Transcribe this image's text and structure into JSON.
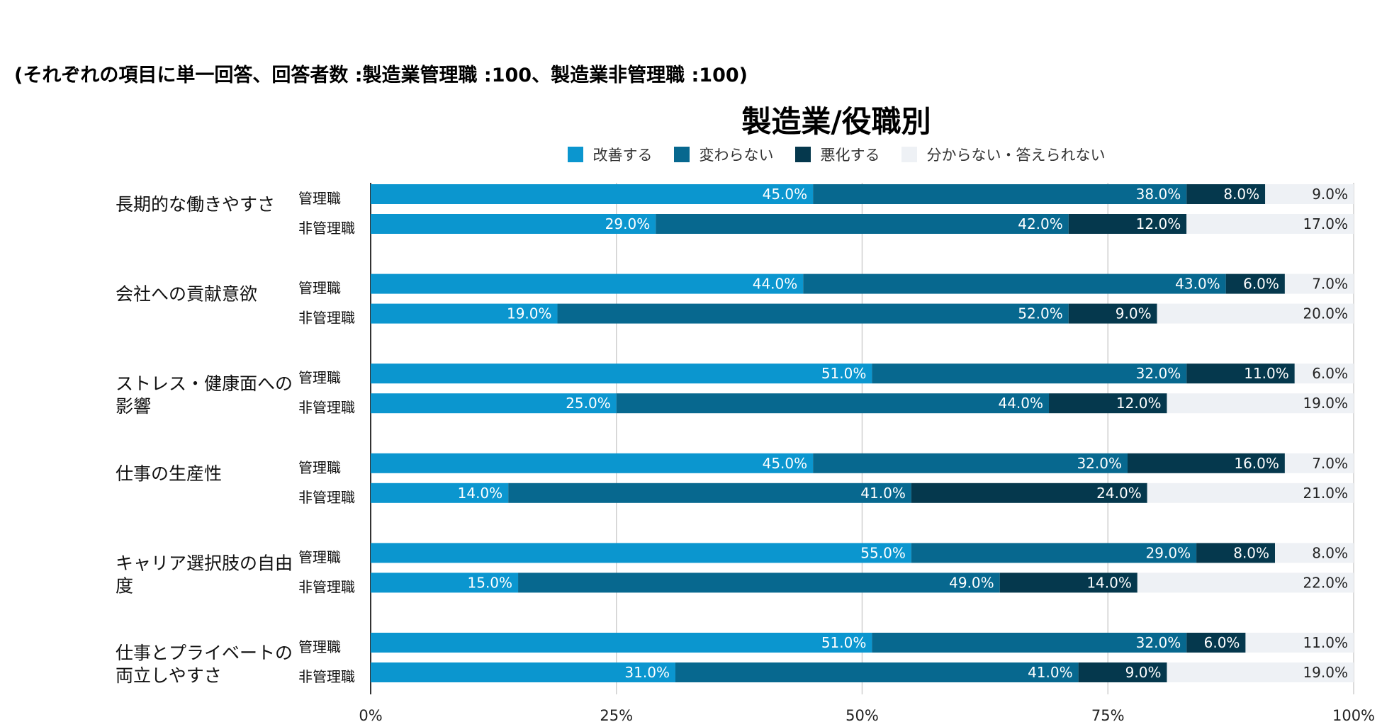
{
  "note": "(それぞれの項目に単一回答、回答者数 :製造業管理職 :100、製造業非管理職 :100)",
  "chart_data": {
    "type": "bar",
    "orientation": "horizontal",
    "stacked": true,
    "title": "製造業/役職別",
    "xlim": [
      0,
      100
    ],
    "xticks": [
      "0%",
      "25%",
      "50%",
      "75%",
      "100%"
    ],
    "legend": [
      {
        "label": "改善する",
        "color": "#0b96cf"
      },
      {
        "label": "変わらない",
        "color": "#07688f"
      },
      {
        "label": "悪化する",
        "color": "#05384d"
      },
      {
        "label": "分からない・答えられない",
        "color": "#eef1f5"
      }
    ],
    "groups": [
      {
        "label": "長期的な働きやすさ",
        "rows": [
          {
            "label": "管理職",
            "values": [
              45.0,
              38.0,
              8.0,
              9.0
            ],
            "labels": [
              "45.0%",
              "38.0%",
              "8.0%",
              "9.0%"
            ]
          },
          {
            "label": "非管理職",
            "values": [
              29.0,
              42.0,
              12.0,
              17.0
            ],
            "labels": [
              "29.0%",
              "42.0%",
              "12.0%",
              "17.0%"
            ]
          }
        ]
      },
      {
        "label": "会社への貢献意欲",
        "rows": [
          {
            "label": "管理職",
            "values": [
              44.0,
              43.0,
              6.0,
              7.0
            ],
            "labels": [
              "44.0%",
              "43.0%",
              "6.0%",
              "7.0%"
            ]
          },
          {
            "label": "非管理職",
            "values": [
              19.0,
              52.0,
              9.0,
              20.0
            ],
            "labels": [
              "19.0%",
              "52.0%",
              "9.0%",
              "20.0%"
            ]
          }
        ]
      },
      {
        "label": "ストレス・健康面への影響",
        "rows": [
          {
            "label": "管理職",
            "values": [
              51.0,
              32.0,
              11.0,
              6.0
            ],
            "labels": [
              "51.0%",
              "32.0%",
              "11.0%",
              "6.0%"
            ]
          },
          {
            "label": "非管理職",
            "values": [
              25.0,
              44.0,
              12.0,
              19.0
            ],
            "labels": [
              "25.0%",
              "44.0%",
              "12.0%",
              "19.0%"
            ]
          }
        ]
      },
      {
        "label": "仕事の生産性",
        "rows": [
          {
            "label": "管理職",
            "values": [
              45.0,
              32.0,
              16.0,
              7.0
            ],
            "labels": [
              "45.0%",
              "32.0%",
              "16.0%",
              "7.0%"
            ]
          },
          {
            "label": "非管理職",
            "values": [
              14.0,
              41.0,
              24.0,
              21.0
            ],
            "labels": [
              "14.0%",
              "41.0%",
              "24.0%",
              "21.0%"
            ]
          }
        ]
      },
      {
        "label": "キャリア選択肢の自由度",
        "rows": [
          {
            "label": "管理職",
            "values": [
              55.0,
              29.0,
              8.0,
              8.0
            ],
            "labels": [
              "55.0%",
              "29.0%",
              "8.0%",
              "8.0%"
            ]
          },
          {
            "label": "非管理職",
            "values": [
              15.0,
              49.0,
              14.0,
              22.0
            ],
            "labels": [
              "15.0%",
              "49.0%",
              "14.0%",
              "22.0%"
            ]
          }
        ]
      },
      {
        "label": "仕事とプライベートの両立しやすさ",
        "rows": [
          {
            "label": "管理職",
            "values": [
              51.0,
              32.0,
              6.0,
              11.0
            ],
            "labels": [
              "51.0%",
              "32.0%",
              "6.0%",
              "11.0%"
            ]
          },
          {
            "label": "非管理職",
            "values": [
              31.0,
              41.0,
              9.0,
              19.0
            ],
            "labels": [
              "31.0%",
              "41.0%",
              "9.0%",
              "19.0%"
            ]
          }
        ]
      }
    ]
  }
}
